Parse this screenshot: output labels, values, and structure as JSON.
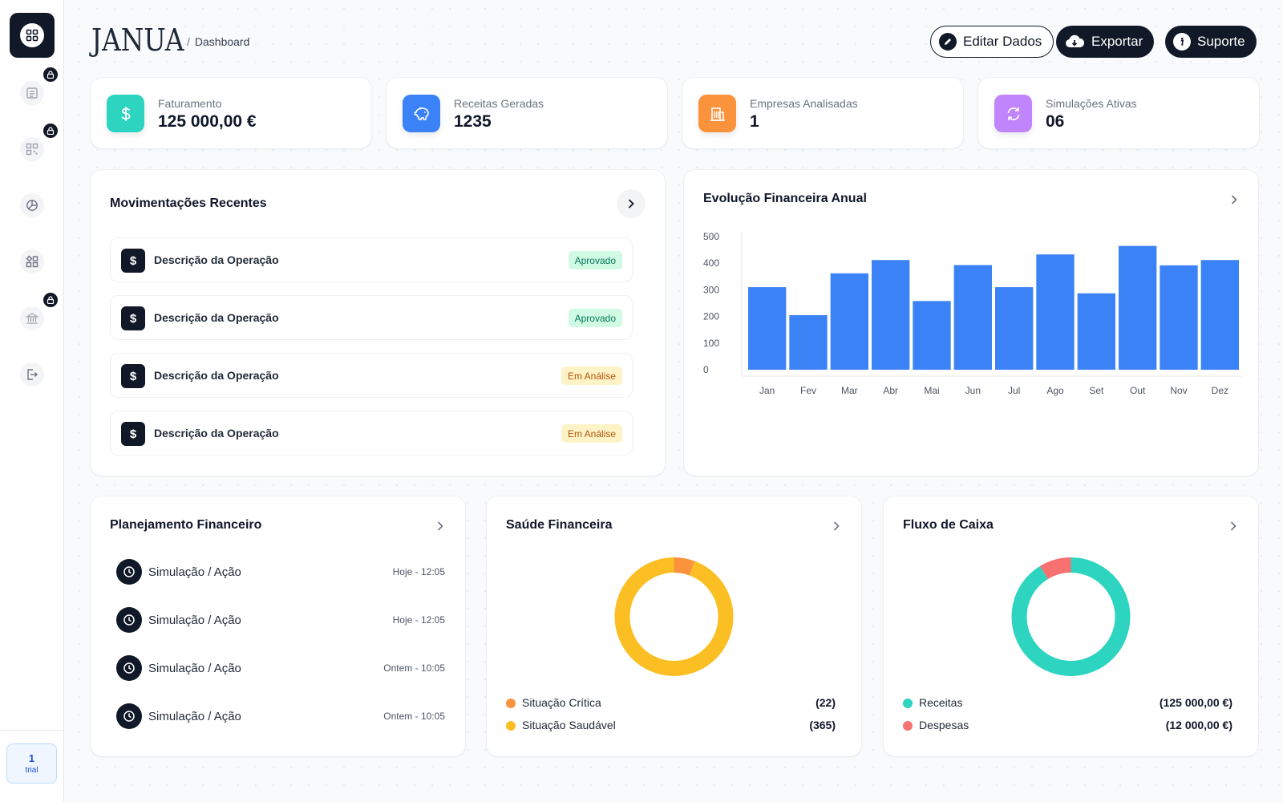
{
  "header": {
    "logo": "JANUA",
    "breadcrumb_sep": "/",
    "breadcrumb": "Dashboard",
    "buttons": {
      "edit": "Editar Dados",
      "export": "Exportar",
      "support": "Suporte"
    }
  },
  "sidebar": {
    "items": [
      {
        "icon": "grid-icon",
        "active": true,
        "locked": false
      },
      {
        "icon": "document-icon",
        "active": false,
        "locked": true
      },
      {
        "icon": "qr-icon",
        "active": false,
        "locked": true
      },
      {
        "icon": "pie-chart-icon",
        "active": false,
        "locked": false
      },
      {
        "icon": "widgets-icon",
        "active": false,
        "locked": false
      },
      {
        "icon": "bank-icon",
        "active": false,
        "locked": true
      },
      {
        "icon": "logout-icon",
        "active": false,
        "locked": false
      }
    ],
    "trial": {
      "count": "1",
      "label": "trial"
    }
  },
  "stats": [
    {
      "label": "Faturamento",
      "value": "125 000,00 €",
      "icon": "dollar-icon",
      "color": "#2dd4bf"
    },
    {
      "label": "Receitas Geradas",
      "value": "1235",
      "icon": "piggy-bank-icon",
      "color": "#3b82f6"
    },
    {
      "label": "Empresas Analisadas",
      "value": "1",
      "icon": "building-icon",
      "color": "#fb923c"
    },
    {
      "label": "Simulações Ativas",
      "value": "06",
      "icon": "refresh-icon",
      "color": "#c084fc"
    }
  ],
  "recent": {
    "title": "Movimentações Recentes",
    "items": [
      {
        "icon": "$",
        "text": "Descrição da Operação",
        "status": "Aprovado"
      },
      {
        "icon": "$",
        "text": "Descrição da Operação",
        "status": "Aprovado"
      },
      {
        "icon": "$",
        "text": "Descrição da Operação",
        "status": "Em Análise"
      },
      {
        "icon": "$",
        "text": "Descrição da Operação",
        "status": "Em Análise"
      }
    ]
  },
  "evolution": {
    "title": "Evolução Financeira Anual",
    "chart_data": {
      "type": "bar",
      "categories": [
        "Jan",
        "Fev",
        "Mar",
        "Abr",
        "Mai",
        "Jun",
        "Jul",
        "Ago",
        "Set",
        "Out",
        "Nov",
        "Dez"
      ],
      "values": [
        310,
        205,
        362,
        412,
        258,
        393,
        310,
        433,
        287,
        465,
        392,
        412
      ],
      "ylim": [
        0,
        500
      ],
      "yticks": [
        0,
        100,
        200,
        300,
        400,
        500
      ],
      "color": "#3b82f6"
    }
  },
  "planning": {
    "title": "Planejamento Financeiro",
    "items": [
      {
        "text": "Simulação / Ação",
        "time": "Hoje - 12:05"
      },
      {
        "text": "Simulação / Ação",
        "time": "Hoje - 12:05"
      },
      {
        "text": "Simulação / Ação",
        "time": "Ontem - 10:05"
      },
      {
        "text": "Simulação / Ação",
        "time": "Ontem - 10:05"
      }
    ]
  },
  "health": {
    "title": "Saúde Financeira",
    "chart_data": {
      "type": "pie",
      "labels": [
        "Situação Crítica",
        "Situação Saudável"
      ],
      "values": [
        22,
        365
      ],
      "display": [
        "(22)",
        "(365)"
      ],
      "colors": [
        "#fb923c",
        "#fbbf24"
      ]
    }
  },
  "cashflow": {
    "title": "Fluxo de Caixa",
    "chart_data": {
      "type": "pie",
      "labels": [
        "Receitas",
        "Despesas"
      ],
      "values": [
        125000,
        12000
      ],
      "display": [
        "(125 000,00 €)",
        "(12 000,00 €)"
      ],
      "colors": [
        "#2dd4bf",
        "#f87171"
      ]
    }
  }
}
